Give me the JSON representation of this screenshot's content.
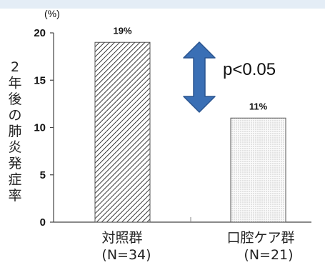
{
  "chart_data": {
    "type": "bar",
    "unit_label": "(%)",
    "ylabel_chars": [
      "2",
      "年",
      "後",
      "の",
      "肺",
      "炎",
      "発",
      "症",
      "率"
    ],
    "ylim": [
      0,
      20
    ],
    "yticks": [
      "0",
      "5",
      "10",
      "15",
      "20"
    ],
    "categories": [
      {
        "name": "対照群",
        "n_label": "(N=34)"
      },
      {
        "name": "口腔ケア群",
        "n_label": "(N=21)"
      }
    ],
    "values": [
      19,
      11
    ],
    "data_labels": [
      "19%",
      "11%"
    ],
    "bar_patterns": [
      "diagonal-hatch",
      "fine-dots"
    ],
    "annotation": "p<0.05",
    "colors": {
      "arrow": "#3a6fb5",
      "arrow_stroke": "#2a5590",
      "bar_stroke": "#555555",
      "axis": "#444444",
      "header_band": "#e4edf6"
    }
  }
}
